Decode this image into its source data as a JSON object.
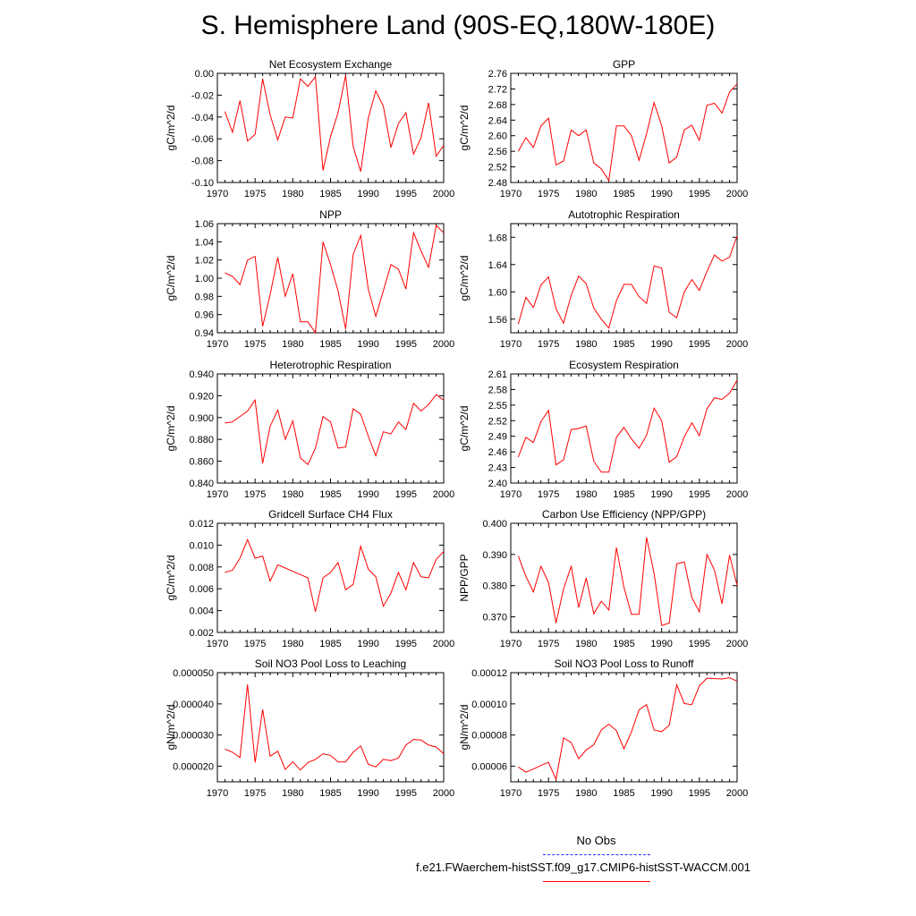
{
  "page": {
    "title": "S. Hemisphere Land (90S-EQ,180W-180E)"
  },
  "legend": {
    "entries": [
      {
        "label": "No Obs",
        "color": "#2b2bff",
        "style": "dashed"
      },
      {
        "label": "f.e21.FWaerchem-histSST.f09_g17.CMIP6-histSST-WACCM.001",
        "color": "#ff0000",
        "style": "solid"
      }
    ]
  },
  "chart_data": [
    {
      "type": "line",
      "title": "Net Ecosystem Exchange",
      "ylabel": "gC/m^2/d",
      "xlim": [
        1970,
        2000
      ],
      "ylim": [
        -0.1,
        0.0
      ],
      "xticks": [
        "1970",
        "1975",
        "1980",
        "1985",
        "1990",
        "1995",
        "2000"
      ],
      "yticks": [
        "-0.10",
        "-0.08",
        "-0.06",
        "-0.04",
        "-0.02",
        "0.00"
      ],
      "series": [
        {
          "color": "#ff0000",
          "x": [
            1971,
            1972,
            1973,
            1974,
            1975,
            1976,
            1977,
            1978,
            1979,
            1980,
            1981,
            1982,
            1983,
            1984,
            1985,
            1986,
            1987,
            1988,
            1989,
            1990,
            1991,
            1992,
            1993,
            1994,
            1995,
            1996,
            1997,
            1998,
            1999,
            2000
          ],
          "values": [
            -0.035,
            -0.054,
            -0.025,
            -0.062,
            -0.056,
            -0.005,
            -0.038,
            -0.061,
            -0.04,
            -0.041,
            -0.005,
            -0.012,
            -0.003,
            -0.089,
            -0.058,
            -0.036,
            -0.002,
            -0.067,
            -0.09,
            -0.041,
            -0.016,
            -0.03,
            -0.068,
            -0.046,
            -0.036,
            -0.074,
            -0.059,
            -0.027,
            -0.076,
            -0.066
          ]
        }
      ]
    },
    {
      "type": "line",
      "title": "GPP",
      "ylabel": "gC/m^2/d",
      "xlim": [
        1970,
        2000
      ],
      "ylim": [
        2.48,
        2.76
      ],
      "xticks": [
        "1970",
        "1975",
        "1980",
        "1985",
        "1990",
        "1995",
        "2000"
      ],
      "yticks": [
        "2.48",
        "2.52",
        "2.56",
        "2.60",
        "2.64",
        "2.68",
        "2.72",
        "2.76"
      ],
      "series": [
        {
          "color": "#ff0000",
          "x": [
            1971,
            1972,
            1973,
            1974,
            1975,
            1976,
            1977,
            1978,
            1979,
            1980,
            1981,
            1982,
            1983,
            1984,
            1985,
            1986,
            1987,
            1988,
            1989,
            1990,
            1991,
            1992,
            1993,
            1994,
            1995,
            1996,
            1997,
            1998,
            1999,
            2000
          ],
          "values": [
            2.56,
            2.595,
            2.57,
            2.625,
            2.645,
            2.525,
            2.535,
            2.615,
            2.6,
            2.615,
            2.53,
            2.515,
            2.485,
            2.625,
            2.625,
            2.6,
            2.537,
            2.605,
            2.685,
            2.625,
            2.53,
            2.545,
            2.615,
            2.627,
            2.588,
            2.678,
            2.683,
            2.658,
            2.712,
            2.733
          ]
        }
      ]
    },
    {
      "type": "line",
      "title": "NPP",
      "ylabel": "gC/m^2/d",
      "xlim": [
        1970,
        2000
      ],
      "ylim": [
        0.94,
        1.06
      ],
      "xticks": [
        "1970",
        "1975",
        "1980",
        "1985",
        "1990",
        "1995",
        "2000"
      ],
      "yticks": [
        "0.94",
        "0.96",
        "0.98",
        "1.00",
        "1.02",
        "1.04",
        "1.06"
      ],
      "series": [
        {
          "color": "#ff0000",
          "x": [
            1971,
            1972,
            1973,
            1974,
            1975,
            1976,
            1977,
            1978,
            1979,
            1980,
            1981,
            1982,
            1983,
            1984,
            1985,
            1986,
            1987,
            1988,
            1989,
            1990,
            1991,
            1992,
            1993,
            1994,
            1995,
            1996,
            1997,
            1998,
            1999,
            2000
          ],
          "values": [
            1.006,
            1.002,
            0.993,
            1.02,
            1.024,
            0.947,
            0.982,
            1.023,
            0.98,
            1.005,
            0.952,
            0.952,
            0.94,
            1.04,
            1.015,
            0.986,
            0.944,
            1.026,
            1.047,
            0.988,
            0.958,
            0.986,
            1.015,
            1.01,
            0.988,
            1.05,
            1.03,
            1.012,
            1.058,
            1.05
          ]
        }
      ]
    },
    {
      "type": "line",
      "title": "Autotrophic Respiration",
      "ylabel": "gC/m^2/d",
      "xlim": [
        1970,
        2000
      ],
      "ylim": [
        1.54,
        1.7
      ],
      "xticks": [
        "1970",
        "1975",
        "1980",
        "1985",
        "1990",
        "1995",
        "2000"
      ],
      "yticks": [
        "1.56",
        "1.60",
        "1.64",
        "1.68"
      ],
      "series": [
        {
          "color": "#ff0000",
          "x": [
            1971,
            1972,
            1973,
            1974,
            1975,
            1976,
            1977,
            1978,
            1979,
            1980,
            1981,
            1982,
            1983,
            1984,
            1985,
            1986,
            1987,
            1988,
            1989,
            1990,
            1991,
            1992,
            1993,
            1994,
            1995,
            1996,
            1997,
            1998,
            1999,
            2000
          ],
          "values": [
            1.553,
            1.592,
            1.577,
            1.61,
            1.622,
            1.575,
            1.554,
            1.595,
            1.623,
            1.612,
            1.576,
            1.56,
            1.547,
            1.587,
            1.611,
            1.611,
            1.593,
            1.583,
            1.638,
            1.635,
            1.57,
            1.562,
            1.6,
            1.618,
            1.602,
            1.63,
            1.654,
            1.645,
            1.651,
            1.682
          ]
        }
      ]
    },
    {
      "type": "line",
      "title": "Heterotrophic Respiration",
      "ylabel": "gC/m^2/d",
      "xlim": [
        1970,
        2000
      ],
      "ylim": [
        0.84,
        0.94
      ],
      "xticks": [
        "1970",
        "1975",
        "1980",
        "1985",
        "1990",
        "1995",
        "2000"
      ],
      "yticks": [
        "0.840",
        "0.860",
        "0.880",
        "0.900",
        "0.920",
        "0.940"
      ],
      "series": [
        {
          "color": "#ff0000",
          "x": [
            1971,
            1972,
            1973,
            1974,
            1975,
            1976,
            1977,
            1978,
            1979,
            1980,
            1981,
            1982,
            1983,
            1984,
            1985,
            1986,
            1987,
            1988,
            1989,
            1990,
            1991,
            1992,
            1993,
            1994,
            1995,
            1996,
            1997,
            1998,
            1999,
            2000
          ],
          "values": [
            0.895,
            0.896,
            0.901,
            0.906,
            0.916,
            0.858,
            0.892,
            0.907,
            0.88,
            0.897,
            0.863,
            0.857,
            0.872,
            0.901,
            0.896,
            0.872,
            0.873,
            0.908,
            0.903,
            0.883,
            0.865,
            0.887,
            0.885,
            0.896,
            0.889,
            0.913,
            0.906,
            0.912,
            0.921,
            0.916
          ]
        }
      ]
    },
    {
      "type": "line",
      "title": "Ecosystem Respiration",
      "ylabel": "gC/m^2/d",
      "xlim": [
        1970,
        2000
      ],
      "ylim": [
        2.4,
        2.61
      ],
      "xticks": [
        "1970",
        "1975",
        "1980",
        "1985",
        "1990",
        "1995",
        "2000"
      ],
      "yticks": [
        "2.40",
        "2.43",
        "2.46",
        "2.49",
        "2.52",
        "2.55",
        "2.58",
        "2.61"
      ],
      "series": [
        {
          "color": "#ff0000",
          "x": [
            1971,
            1972,
            1973,
            1974,
            1975,
            1976,
            1977,
            1978,
            1979,
            1980,
            1981,
            1982,
            1983,
            1984,
            1985,
            1986,
            1987,
            1988,
            1989,
            1990,
            1991,
            1992,
            1993,
            1994,
            1995,
            1996,
            1997,
            1998,
            1999,
            2000
          ],
          "values": [
            2.45,
            2.488,
            2.478,
            2.518,
            2.54,
            2.435,
            2.445,
            2.503,
            2.505,
            2.51,
            2.442,
            2.421,
            2.421,
            2.488,
            2.507,
            2.485,
            2.467,
            2.492,
            2.544,
            2.52,
            2.44,
            2.451,
            2.489,
            2.516,
            2.491,
            2.543,
            2.564,
            2.561,
            2.573,
            2.598
          ]
        }
      ]
    },
    {
      "type": "line",
      "title": "Gridcell Surface CH4 Flux",
      "ylabel": "gC/m^2/d",
      "xlim": [
        1970,
        2000
      ],
      "ylim": [
        0.002,
        0.012
      ],
      "xticks": [
        "1970",
        "1975",
        "1980",
        "1985",
        "1990",
        "1995",
        "2000"
      ],
      "yticks": [
        "0.002",
        "0.004",
        "0.006",
        "0.008",
        "0.010",
        "0.012"
      ],
      "series": [
        {
          "color": "#ff0000",
          "x": [
            1971,
            1972,
            1973,
            1974,
            1975,
            1976,
            1977,
            1978,
            1979,
            1980,
            1981,
            1982,
            1983,
            1984,
            1985,
            1986,
            1987,
            1988,
            1989,
            1990,
            1991,
            1992,
            1993,
            1994,
            1995,
            1996,
            1997,
            1998,
            1999,
            2000
          ],
          "values": [
            0.0075,
            0.0077,
            0.0088,
            0.0105,
            0.0088,
            0.009,
            0.0067,
            0.0082,
            0.0079,
            0.0076,
            0.0073,
            0.007,
            0.0039,
            0.007,
            0.0075,
            0.0084,
            0.0059,
            0.0064,
            0.0099,
            0.0078,
            0.0071,
            0.0044,
            0.0056,
            0.0075,
            0.0059,
            0.0084,
            0.0071,
            0.007,
            0.0087,
            0.0094
          ]
        }
      ]
    },
    {
      "type": "line",
      "title": "Carbon Use Efficiency (NPP/GPP)",
      "ylabel": "NPP/GPP",
      "xlim": [
        1970,
        2000
      ],
      "ylim": [
        0.365,
        0.4
      ],
      "xticks": [
        "1970",
        "1975",
        "1980",
        "1985",
        "1990",
        "1995",
        "2000"
      ],
      "yticks": [
        "0.370",
        "0.380",
        "0.390",
        "0.400"
      ],
      "series": [
        {
          "color": "#ff0000",
          "x": [
            1971,
            1972,
            1973,
            1974,
            1975,
            1976,
            1977,
            1978,
            1979,
            1980,
            1981,
            1982,
            1983,
            1984,
            1985,
            1986,
            1987,
            1988,
            1989,
            1990,
            1991,
            1992,
            1993,
            1994,
            1995,
            1996,
            1997,
            1998,
            1999,
            2000
          ],
          "values": [
            0.3895,
            0.383,
            0.378,
            0.3862,
            0.381,
            0.368,
            0.379,
            0.3862,
            0.373,
            0.3825,
            0.371,
            0.375,
            0.3722,
            0.3922,
            0.3795,
            0.3708,
            0.3708,
            0.3955,
            0.384,
            0.3672,
            0.368,
            0.387,
            0.3876,
            0.3762,
            0.3716,
            0.39,
            0.385,
            0.3742,
            0.3898,
            0.3801
          ]
        }
      ]
    },
    {
      "type": "line",
      "title": "Soil NO3 Pool Loss to Leaching",
      "ylabel": "gN/m^2/d",
      "xlim": [
        1970,
        2000
      ],
      "ylim": [
        1.5e-05,
        5e-05
      ],
      "xticks": [
        "1970",
        "1975",
        "1980",
        "1985",
        "1990",
        "1995",
        "2000"
      ],
      "yticks": [
        "0.000020",
        "0.000030",
        "0.000040",
        "0.000050"
      ],
      "series": [
        {
          "color": "#ff0000",
          "x": [
            1971,
            1972,
            1973,
            1974,
            1975,
            1976,
            1977,
            1978,
            1979,
            1980,
            1981,
            1982,
            1983,
            1984,
            1985,
            1986,
            1987,
            1988,
            1989,
            1990,
            1991,
            1992,
            1993,
            1994,
            1995,
            1996,
            1997,
            1998,
            1999,
            2000
          ],
          "values": [
            2.55e-05,
            2.45e-05,
            2.28e-05,
            4.62e-05,
            2.12e-05,
            3.82e-05,
            2.32e-05,
            2.48e-05,
            1.9e-05,
            2.14e-05,
            1.88e-05,
            2.12e-05,
            2.22e-05,
            2.4e-05,
            2.35e-05,
            2.14e-05,
            2.14e-05,
            2.45e-05,
            2.65e-05,
            2.06e-05,
            1.98e-05,
            2.22e-05,
            2.18e-05,
            2.26e-05,
            2.68e-05,
            2.86e-05,
            2.84e-05,
            2.68e-05,
            2.62e-05,
            2.4e-05
          ]
        }
      ]
    },
    {
      "type": "line",
      "title": "Soil NO3 Pool Loss to Runoff",
      "ylabel": "gN/m^2/d",
      "xlim": [
        1970,
        2000
      ],
      "ylim": [
        5e-05,
        0.00012
      ],
      "xticks": [
        "1970",
        "1975",
        "1980",
        "1985",
        "1990",
        "1995",
        "2000"
      ],
      "yticks": [
        "0.00006",
        "0.00008",
        "0.00010",
        "0.00012"
      ],
      "series": [
        {
          "color": "#ff0000",
          "x": [
            1971,
            1972,
            1973,
            1974,
            1975,
            1976,
            1977,
            1978,
            1979,
            1980,
            1981,
            1982,
            1983,
            1984,
            1985,
            1986,
            1987,
            1988,
            1989,
            1990,
            1991,
            1992,
            1993,
            1994,
            1995,
            1996,
            1997,
            1998,
            1999,
            2000
          ],
          "values": [
            5.95e-05,
            5.62e-05,
            5.82e-05,
            6.05e-05,
            6.25e-05,
            5.15e-05,
            7.82e-05,
            7.52e-05,
            6.48e-05,
            7.05e-05,
            7.38e-05,
            8.32e-05,
            8.7e-05,
            8.28e-05,
            7.12e-05,
            8.2e-05,
            9.62e-05,
            9.95e-05,
            8.32e-05,
            8.22e-05,
            8.62e-05,
            0.0001122,
            0.0001002,
            9.95e-05,
            0.0001115,
            0.0001165,
            0.0001162,
            0.000116,
            0.0001168,
            0.0001145
          ]
        }
      ]
    }
  ]
}
